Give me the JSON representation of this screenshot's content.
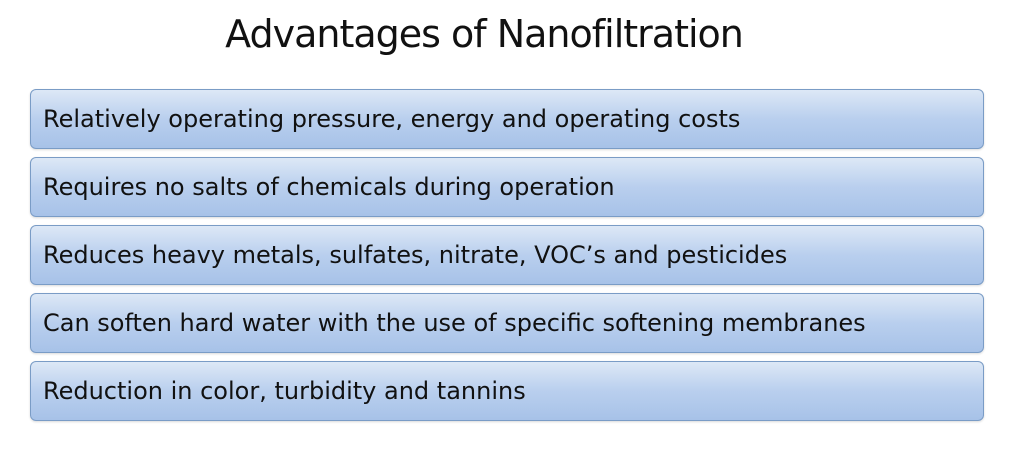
{
  "header": {
    "title": "Advantages of Nanofiltration"
  },
  "items": [
    "Relatively operating pressure, energy and operating costs",
    "Requires no salts of chemicals during operation",
    "Reduces heavy metals, sulfates, nitrate, VOC’s and pesticides",
    "Can soften hard water with the use of specific softening membranes",
    "Reduction in color, turbidity and tannins"
  ]
}
